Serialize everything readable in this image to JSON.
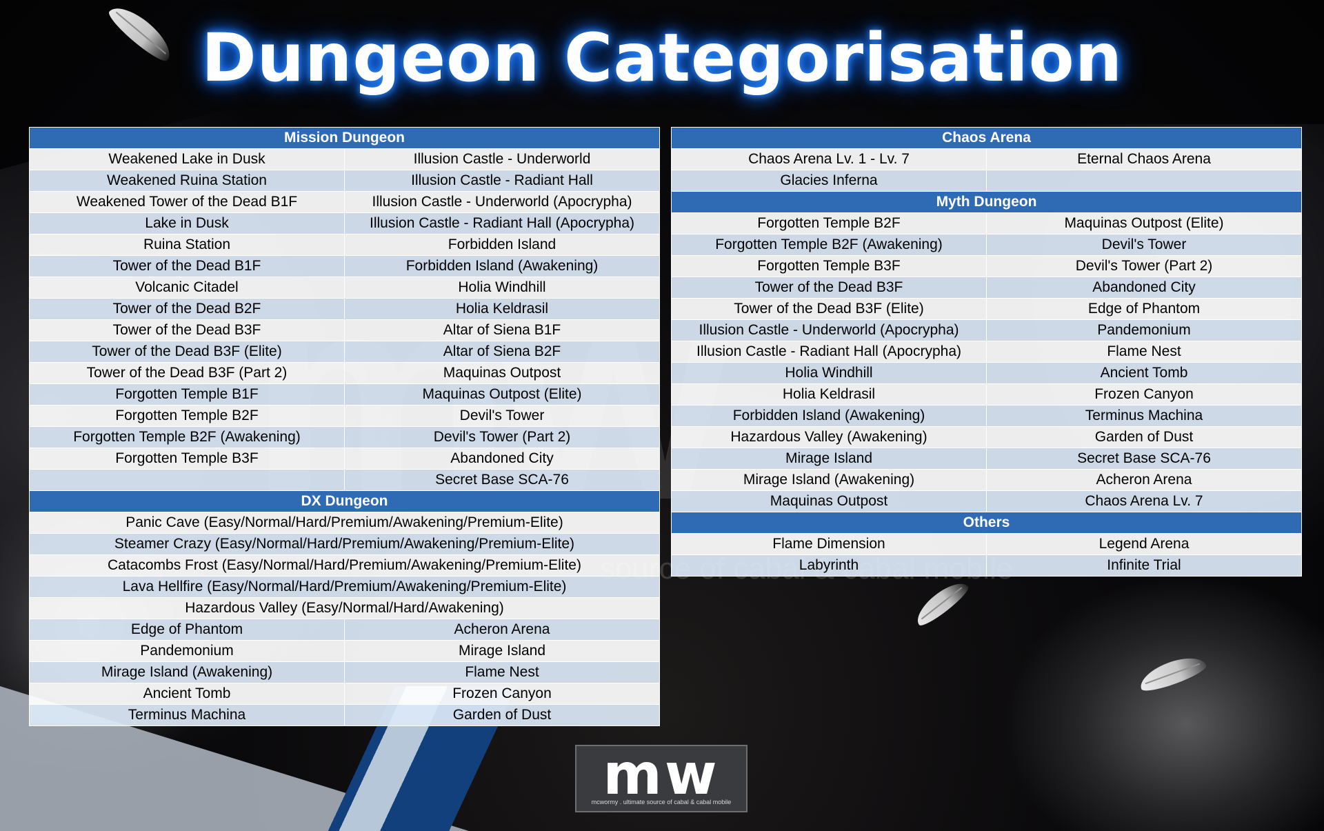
{
  "title": "Dungeon Categorisation",
  "watermark": {
    "letters": "mw",
    "tagline": "source of cabal & cabal mobile"
  },
  "logo": {
    "mark": "mw",
    "tagline": "mcwormy . ultimate source of cabal & cabal mobile"
  },
  "sections": {
    "mission": {
      "header": "Mission Dungeon",
      "rows": [
        [
          "Weakened Lake in Dusk",
          "Illusion Castle - Underworld"
        ],
        [
          "Weakened Ruina Station",
          "Illusion Castle - Radiant Hall"
        ],
        [
          "Weakened Tower of the Dead B1F",
          "Illusion Castle - Underworld (Apocrypha)"
        ],
        [
          "Lake in Dusk",
          "Illusion Castle - Radiant Hall (Apocrypha)"
        ],
        [
          "Ruina Station",
          "Forbidden Island"
        ],
        [
          "Tower of the Dead B1F",
          "Forbidden Island (Awakening)"
        ],
        [
          "Volcanic Citadel",
          "Holia Windhill"
        ],
        [
          "Tower of the Dead B2F",
          "Holia Keldrasil"
        ],
        [
          "Tower of the Dead B3F",
          "Altar of Siena B1F"
        ],
        [
          "Tower of the Dead B3F (Elite)",
          "Altar of Siena B2F"
        ],
        [
          "Tower of the Dead B3F (Part 2)",
          "Maquinas Outpost"
        ],
        [
          "Forgotten Temple B1F",
          "Maquinas Outpost (Elite)"
        ],
        [
          "Forgotten Temple B2F",
          "Devil's Tower"
        ],
        [
          "Forgotten Temple B2F (Awakening)",
          "Devil's Tower (Part 2)"
        ],
        [
          "Forgotten Temple B3F",
          "Abandoned City"
        ],
        [
          "",
          "Secret Base SCA-76"
        ]
      ]
    },
    "dx": {
      "header": "DX Dungeon",
      "wide_rows": [
        "Panic Cave (Easy/Normal/Hard/Premium/Awakening/Premium-Elite)",
        "Steamer Crazy (Easy/Normal/Hard/Premium/Awakening/Premium-Elite)",
        "Catacombs Frost (Easy/Normal/Hard/Premium/Awakening/Premium-Elite)",
        "Lava Hellfire (Easy/Normal/Hard/Premium/Awakening/Premium-Elite)",
        "Hazardous Valley (Easy/Normal/Hard/Awakening)"
      ],
      "rows": [
        [
          "Edge of Phantom",
          "Acheron Arena"
        ],
        [
          "Pandemonium",
          "Mirage Island"
        ],
        [
          "Mirage Island (Awakening)",
          "Flame Nest"
        ],
        [
          "Ancient Tomb",
          "Frozen Canyon"
        ],
        [
          "Terminus Machina",
          "Garden of Dust"
        ]
      ]
    },
    "chaos": {
      "header": "Chaos Arena",
      "rows": [
        [
          "Chaos Arena Lv. 1 - Lv. 7",
          "Eternal Chaos Arena"
        ],
        [
          "Glacies Inferna",
          ""
        ]
      ]
    },
    "myth": {
      "header": "Myth Dungeon",
      "rows": [
        [
          "Forgotten Temple B2F",
          "Maquinas Outpost (Elite)"
        ],
        [
          "Forgotten Temple B2F (Awakening)",
          "Devil's Tower"
        ],
        [
          "Forgotten Temple B3F",
          "Devil's Tower (Part 2)"
        ],
        [
          "Tower of the Dead B3F",
          "Abandoned City"
        ],
        [
          "Tower of the Dead B3F (Elite)",
          "Edge of Phantom"
        ],
        [
          "Illusion Castle - Underworld (Apocrypha)",
          "Pandemonium"
        ],
        [
          "Illusion Castle - Radiant Hall (Apocrypha)",
          "Flame Nest"
        ],
        [
          "Holia Windhill",
          "Ancient Tomb"
        ],
        [
          "Holia Keldrasil",
          "Frozen Canyon"
        ],
        [
          "Forbidden Island (Awakening)",
          "Terminus Machina"
        ],
        [
          "Hazardous Valley (Awakening)",
          "Garden of Dust"
        ],
        [
          "Mirage Island",
          "Secret Base SCA-76"
        ],
        [
          "Mirage Island (Awakening)",
          "Acheron Arena"
        ],
        [
          "Maquinas Outpost",
          "Chaos Arena Lv. 7"
        ]
      ]
    },
    "others": {
      "header": "Others",
      "rows": [
        [
          "Flame Dimension",
          "Legend Arena"
        ],
        [
          "Labyrinth",
          "Infinite Trial"
        ]
      ]
    }
  }
}
